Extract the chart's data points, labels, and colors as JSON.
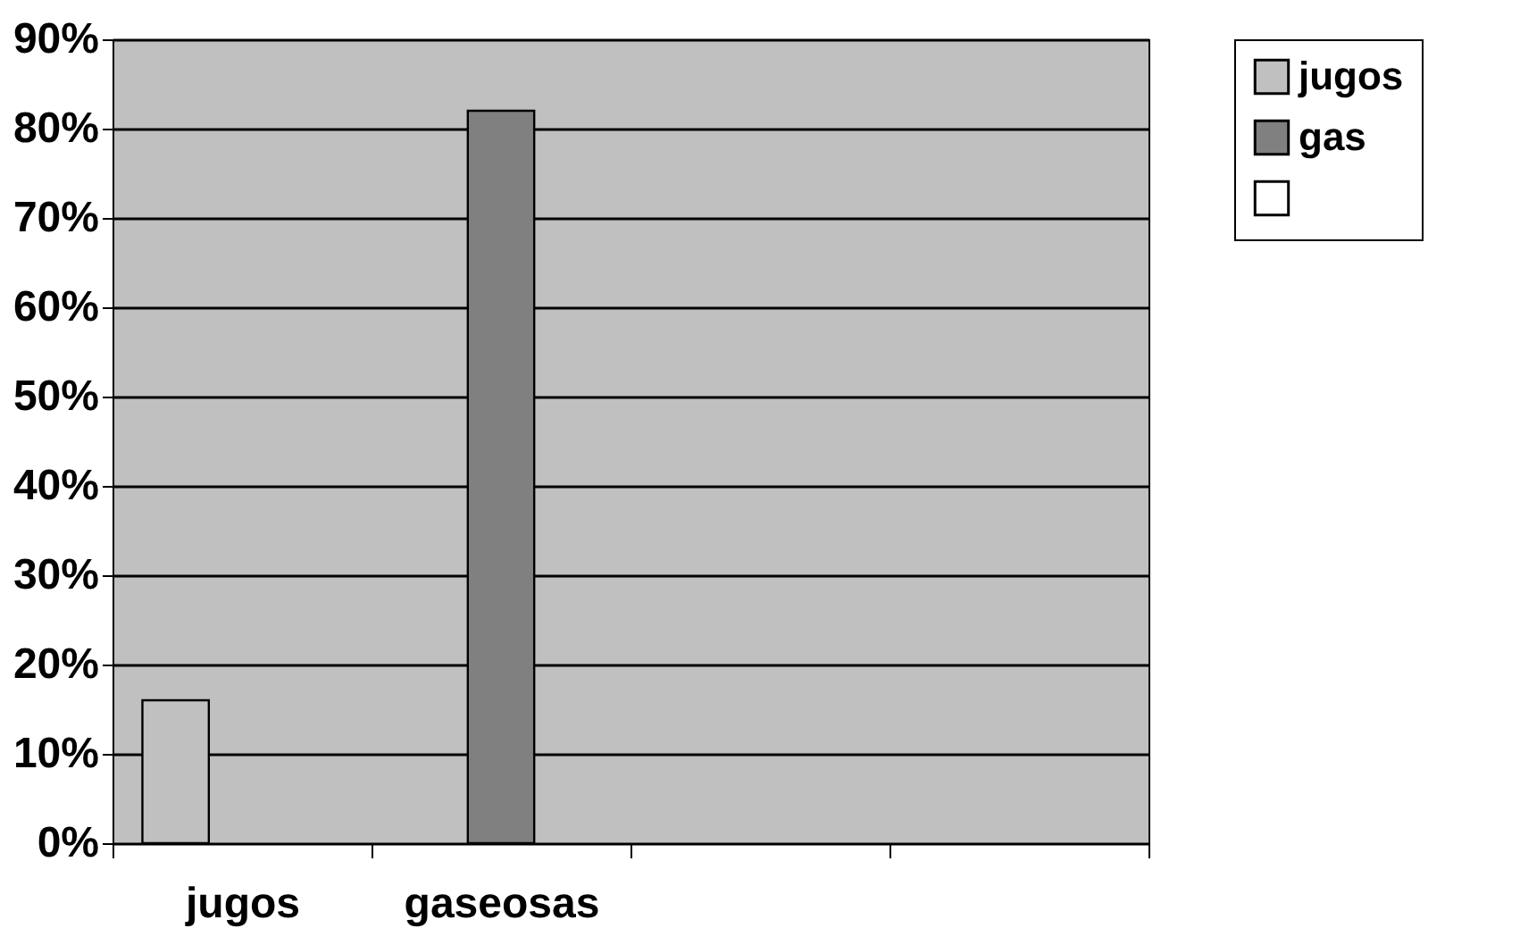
{
  "chart_data": {
    "type": "bar",
    "categories": [
      "jugos",
      "gaseosas",
      null,
      null
    ],
    "series": [
      {
        "name": "jugos",
        "color": "#c0c0c0",
        "values": [
          16,
          null,
          null,
          null
        ]
      },
      {
        "name": "gas",
        "color": "#808080",
        "values": [
          null,
          82,
          null,
          null
        ]
      },
      {
        "color": "#ffffff",
        "values": [
          null,
          null,
          null,
          null
        ]
      }
    ],
    "ylim": [
      0,
      90
    ],
    "yticks": [
      {
        "value": 0,
        "label": "0%"
      },
      {
        "value": 10,
        "label": "10%"
      },
      {
        "value": 20,
        "label": "20%"
      },
      {
        "value": 30,
        "label": "30%"
      },
      {
        "value": 40,
        "label": "40%"
      },
      {
        "value": 50,
        "label": "50%"
      },
      {
        "value": 60,
        "label": "60%"
      },
      {
        "value": 70,
        "label": "70%"
      },
      {
        "value": 80,
        "label": "80%"
      },
      {
        "value": 90,
        "label": "90%"
      }
    ],
    "grid": "y",
    "legend": "right"
  }
}
